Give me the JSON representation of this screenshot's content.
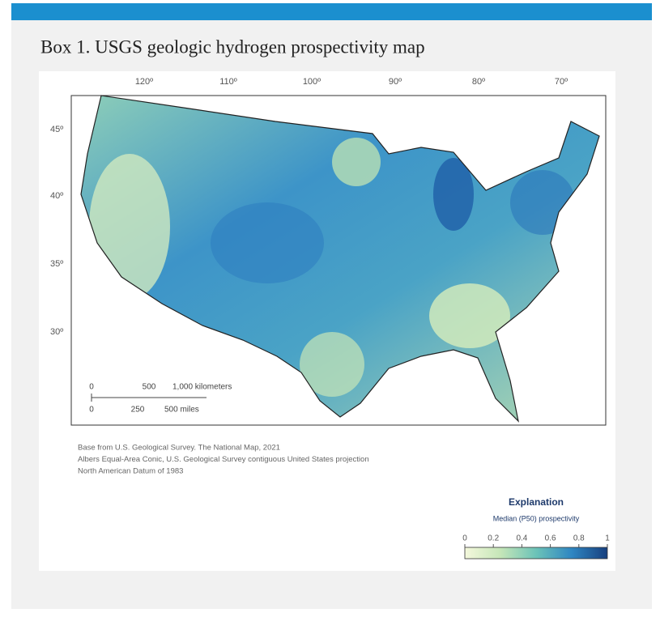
{
  "header": {
    "title": "Box 1. USGS geologic hydrogen prospectivity map"
  },
  "map": {
    "longitude_labels": [
      "120º",
      "110º",
      "100º",
      "90º",
      "80º",
      "70º"
    ],
    "latitude_labels": [
      "45º",
      "40º",
      "35º",
      "30º"
    ],
    "scale_bar": {
      "km_labels": [
        "0",
        "500",
        "1,000 kilometers"
      ],
      "mile_labels": [
        "0",
        "250",
        "500 miles"
      ]
    },
    "credits": [
      "Base from U.S. Geological Survey. The National Map, 2021",
      "Albers Equal-Area Conic, U.S. Geological Survey contiguous United States projection",
      "North American Datum of 1983"
    ]
  },
  "legend": {
    "title": "Explanation",
    "subtitle": "Median (P50) prospectivity",
    "range": [
      0,
      1
    ],
    "ticks": [
      0,
      0.2,
      0.4,
      0.6,
      0.8,
      1
    ]
  }
}
